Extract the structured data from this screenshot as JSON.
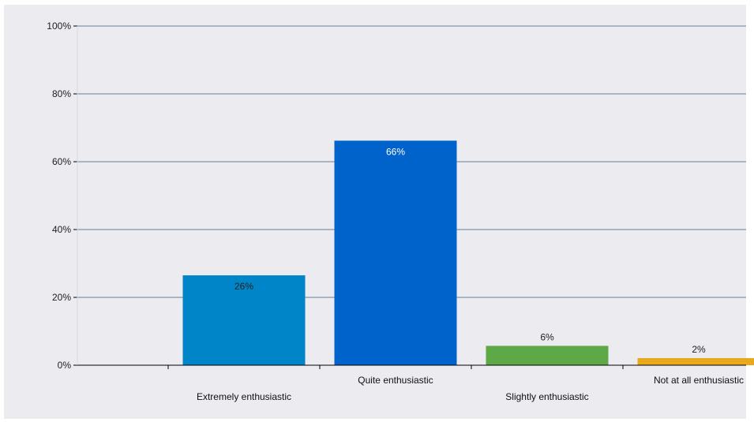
{
  "chart_data": {
    "type": "bar",
    "categories": [
      "",
      "Extremely enthusiastic",
      "Quite enthusiastic",
      "Slightly enthusiastic",
      "Not at all enthusiastic"
    ],
    "values": [
      null,
      26.5,
      66.2,
      5.7,
      2.1
    ],
    "data_labels": [
      "",
      "26%",
      "66%",
      "6%",
      "2%"
    ],
    "colors": [
      "",
      "#0086c8",
      "#0063cc",
      "#5da847",
      "#e8aa1c"
    ],
    "label_colors": [
      "",
      "#222222",
      "#ffffff",
      "#222222",
      "#222222"
    ],
    "label_inside": [
      false,
      true,
      true,
      false,
      false
    ],
    "y_ticks": [
      "0%",
      "20%",
      "40%",
      "60%",
      "80%",
      "100%"
    ],
    "ylim": [
      0,
      100
    ],
    "grid": true,
    "gridline_color": "#6b7f95",
    "background_color": "#ebebf0",
    "title": "",
    "xlabel": "",
    "ylabel": ""
  }
}
